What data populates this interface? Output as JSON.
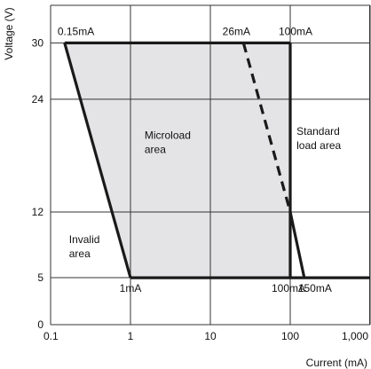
{
  "chart_data": {
    "type": "area",
    "xlabel": "Current (mA)",
    "ylabel": "Voltage (V)",
    "x_scale": "log",
    "xlim": [
      0.1,
      1000
    ],
    "ylim": [
      0,
      34
    ],
    "grid": true,
    "x_ticks": [
      {
        "value": 0.1,
        "label": "0.1"
      },
      {
        "value": 1,
        "label": "1"
      },
      {
        "value": 10,
        "label": "10"
      },
      {
        "value": 100,
        "label": "100"
      },
      {
        "value": 1000,
        "label": "1,000"
      }
    ],
    "y_ticks": [
      {
        "value": 0,
        "label": "0"
      },
      {
        "value": 5,
        "label": "5"
      },
      {
        "value": 12,
        "label": "12"
      },
      {
        "value": 24,
        "label": "24"
      },
      {
        "value": 30,
        "label": "30"
      }
    ],
    "microload_region": [
      [
        0.15,
        30
      ],
      [
        100,
        30
      ],
      [
        100,
        5
      ],
      [
        1,
        5
      ]
    ],
    "boundary_lines": [
      {
        "points": [
          [
            0.15,
            30
          ],
          [
            100,
            30
          ]
        ],
        "style": "solid"
      },
      {
        "points": [
          [
            1,
            5
          ],
          [
            1000,
            5
          ]
        ],
        "style": "solid"
      },
      {
        "points": [
          [
            0.15,
            30
          ],
          [
            1,
            5
          ]
        ],
        "style": "solid"
      },
      {
        "points": [
          [
            100,
            30
          ],
          [
            100,
            5
          ]
        ],
        "style": "solid"
      },
      {
        "points": [
          [
            100,
            12
          ],
          [
            150,
            5
          ]
        ],
        "style": "solid"
      },
      {
        "points": [
          [
            26,
            30
          ],
          [
            100,
            12
          ]
        ],
        "style": "dashed"
      }
    ],
    "region_labels": [
      {
        "lines": [
          "Microload",
          "area"
        ],
        "x": 1.5,
        "y": 19.8
      },
      {
        "lines": [
          "Standard",
          "load area"
        ],
        "x": 120,
        "y": 20.2
      },
      {
        "lines": [
          "Invalid",
          "area"
        ],
        "x": 0.17,
        "y": 8.7
      }
    ],
    "point_labels": [
      {
        "text": "0.15mA",
        "x": 0.15,
        "y": 30
      },
      {
        "text": "26mA",
        "x": 26,
        "y": 30
      },
      {
        "text": "100mA",
        "x": 100,
        "y": 30
      },
      {
        "text": "1mA",
        "x": 1,
        "y": 5
      },
      {
        "text": "100mA",
        "x": 100,
        "y": 5
      },
      {
        "text": "150mA",
        "x": 150,
        "y": 5
      }
    ],
    "colors": {
      "region_fill": "#e4e4e6",
      "line": "#1a1a1a",
      "grid": "#333333"
    }
  }
}
